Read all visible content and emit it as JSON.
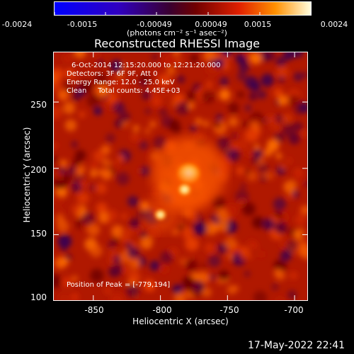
{
  "colorbar": {
    "ticks": [
      "-0.0024",
      "-0.0015",
      "-0.00049",
      "0.00049",
      "0.0015",
      "0.0024"
    ],
    "unit": "(photons cm⁻² s⁻¹ asec⁻²)"
  },
  "info": {
    "time": "6-Oct-2014 12:15:20.000 to 12:21:20.000",
    "detectors": "Detectors: 3F 6F 9F, Att 0",
    "energy": "Energy Range: 12.0 - 25.0 keV",
    "clean": "Clean     Total counts: 4.45E+03",
    "peak": "Position of Peak = [-779,194]"
  },
  "footer_timestamp": "17-May-2022 22:41",
  "chart_data": {
    "type": "heatmap",
    "title": "Reconstructed RHESSI Image",
    "xlabel": "Heliocentric X (arcsec)",
    "ylabel": "Heliocentric Y (arcsec)",
    "xlim": [
      -880,
      -690
    ],
    "ylim": [
      100,
      288
    ],
    "xticks": [
      "-850",
      "-800",
      "-750",
      "-700"
    ],
    "xtick_values": [
      -850,
      -800,
      -750,
      -700
    ],
    "yticks": [
      "100",
      "150",
      "200",
      "250"
    ],
    "ytick_values": [
      100,
      150,
      200,
      250
    ],
    "colorbar_range": [
      -0.0024,
      0.0024
    ],
    "colormap": [
      "#0000ff",
      "#2a00b0",
      "#4a0060",
      "#7a0000",
      "#c02000",
      "#ff6000",
      "#ffd000",
      "#ffffcc"
    ],
    "peak_position": [
      -779,
      194
    ],
    "sources": [
      {
        "x": -779,
        "y": 196,
        "intensity": 1.0
      },
      {
        "x": -782,
        "y": 184,
        "intensity": 0.35
      },
      {
        "x": -800,
        "y": 165,
        "intensity": 0.25
      }
    ]
  }
}
